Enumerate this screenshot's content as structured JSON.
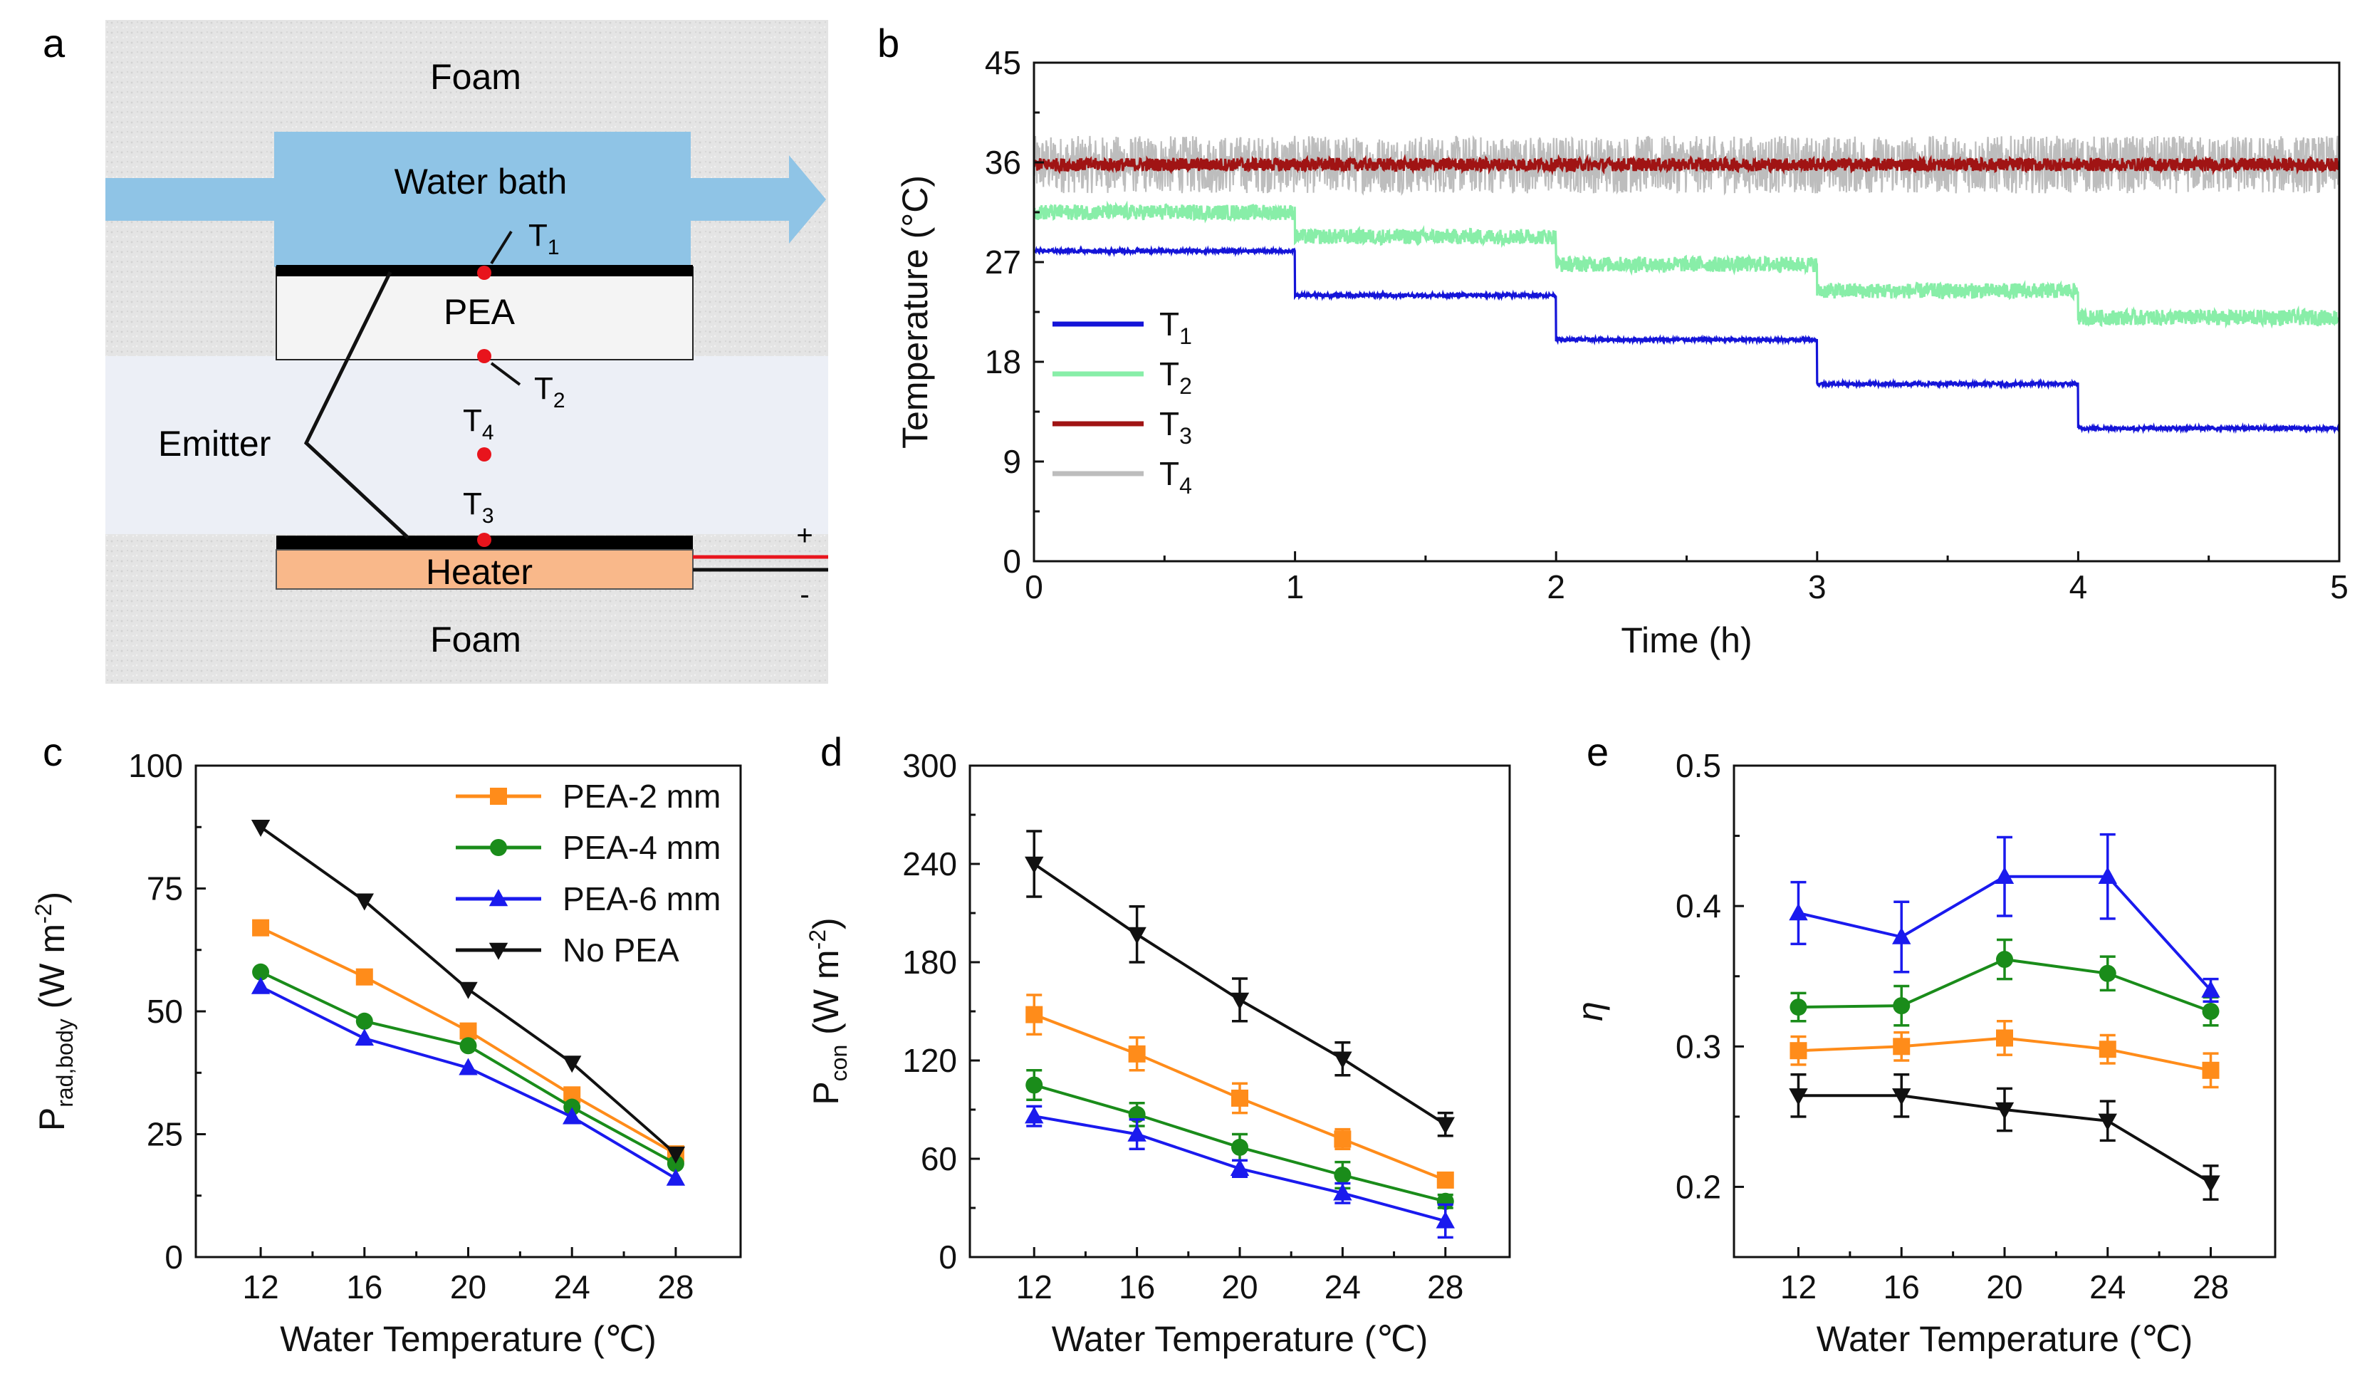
{
  "panels": {
    "a": {
      "letter": "a",
      "labels": {
        "foam_top": "Foam",
        "water_bath": "Water bath",
        "pea": "PEA",
        "emitter": "Emitter",
        "heater": "Heater",
        "foam_bottom": "Foam",
        "t1": "T",
        "t1_sub": "1",
        "t2": "T",
        "t2_sub": "2",
        "t3": "T",
        "t3_sub": "3",
        "t4": "T",
        "t4_sub": "4",
        "plus": "+",
        "minus": "-"
      },
      "colors": {
        "foam": "#e6e6e6",
        "water": "#8fc4e6",
        "pea": "#f1f1f1",
        "heater": "#f9b88a",
        "arrow": "#8fc4e6",
        "sensor": "#e8141c"
      }
    }
  },
  "chart_data": [
    {
      "panel": "b",
      "type": "line",
      "title": "",
      "xlabel": "Time (h)",
      "ylabel": "Temperature (°C)",
      "xlim": [
        0,
        5
      ],
      "ylim": [
        0,
        45
      ],
      "xticks": [
        0,
        1,
        2,
        3,
        4,
        5
      ],
      "yticks": [
        0,
        9,
        18,
        27,
        36,
        45
      ],
      "legend_position": "middle-left",
      "series": [
        {
          "name": "T",
          "sub": "1",
          "color": "#1414d8",
          "noise": 0.15,
          "steps": [
            [
              0,
              1,
              28.0
            ],
            [
              1,
              2,
              24.0
            ],
            [
              2,
              3,
              20.0
            ],
            [
              3,
              4,
              16.0
            ],
            [
              4,
              5,
              12.0
            ]
          ]
        },
        {
          "name": "T",
          "sub": "2",
          "color": "#88eea8",
          "noise": 0.7,
          "steps": [
            [
              0,
              1,
              31.5
            ],
            [
              1,
              2,
              29.3
            ],
            [
              2,
              3,
              26.8
            ],
            [
              3,
              4,
              24.4
            ],
            [
              4,
              5,
              22.0
            ]
          ]
        },
        {
          "name": "T",
          "sub": "3",
          "color": "#a01414",
          "noise": 0.6,
          "steps": [
            [
              0,
              5,
              35.8
            ]
          ]
        },
        {
          "name": "T",
          "sub": "4",
          "color": "#bdbdbd",
          "noise": 2.6,
          "steps": [
            [
              0,
              5,
              35.8
            ]
          ]
        }
      ]
    },
    {
      "panel": "c",
      "type": "line",
      "title": "",
      "xlabel": "Water Temperature (℃)",
      "ylabel_main": "P",
      "ylabel_sub": "rad,body",
      "ylabel_unit": " (W m",
      "ylabel_sup": "-2",
      "ylabel_end": ")",
      "xlim": [
        9.5,
        30.5
      ],
      "ylim": [
        0,
        100
      ],
      "categories": [
        12,
        16,
        20,
        24,
        28
      ],
      "yticks": [
        0,
        25,
        50,
        75,
        100
      ],
      "legend_position": "top-right",
      "series": [
        {
          "name": "PEA-2 mm",
          "color": "#ff8c1a",
          "marker": "square",
          "values": [
            67,
            57,
            46,
            33,
            21
          ]
        },
        {
          "name": "PEA-4 mm",
          "color": "#1a8c1a",
          "marker": "circle",
          "values": [
            58,
            48,
            43,
            30.5,
            19
          ]
        },
        {
          "name": "PEA-6 mm",
          "color": "#1a1aee",
          "marker": "triangle-up",
          "values": [
            55,
            44.5,
            38.5,
            28.5,
            16
          ]
        },
        {
          "name": "No PEA",
          "color": "#111111",
          "marker": "triangle-down",
          "values": [
            87.5,
            72.5,
            54.5,
            39.5,
            21
          ]
        }
      ]
    },
    {
      "panel": "d",
      "type": "line",
      "title": "",
      "xlabel": "Water Temperature (℃)",
      "ylabel_main": "P",
      "ylabel_sub": "con",
      "ylabel_unit": " (W m",
      "ylabel_sup": "-2",
      "ylabel_end": ")",
      "xlim": [
        9.5,
        30.5
      ],
      "ylim": [
        0,
        300
      ],
      "categories": [
        12,
        16,
        20,
        24,
        28
      ],
      "yticks": [
        0,
        60,
        120,
        180,
        240,
        300
      ],
      "series": [
        {
          "name": "PEA-2 mm",
          "color": "#ff8c1a",
          "marker": "square",
          "values": [
            148,
            124,
            97,
            72,
            47
          ],
          "errors": [
            12,
            10,
            9,
            6,
            4
          ]
        },
        {
          "name": "PEA-4 mm",
          "color": "#1a8c1a",
          "marker": "circle",
          "values": [
            105,
            87,
            67,
            50,
            34
          ],
          "errors": [
            9,
            7,
            8,
            8,
            4
          ]
        },
        {
          "name": "PEA-6 mm",
          "color": "#1a1aee",
          "marker": "triangle-up",
          "values": [
            86,
            75,
            54,
            39,
            22
          ],
          "errors": [
            6,
            9,
            5,
            6,
            10
          ]
        },
        {
          "name": "No PEA",
          "color": "#111111",
          "marker": "triangle-down",
          "values": [
            240,
            197,
            157,
            121,
            81
          ],
          "errors": [
            20,
            17,
            13,
            10,
            7
          ]
        }
      ]
    },
    {
      "panel": "e",
      "type": "line",
      "title": "",
      "xlabel": "Water Temperature (℃)",
      "ylabel": "η",
      "xlim": [
        9.5,
        30.5
      ],
      "ylim": [
        0.15,
        0.5
      ],
      "categories": [
        12,
        16,
        20,
        24,
        28
      ],
      "yticks": [
        0.2,
        0.3,
        0.4,
        0.5
      ],
      "series": [
        {
          "name": "PEA-2 mm",
          "color": "#ff8c1a",
          "marker": "square",
          "values": [
            0.297,
            0.3,
            0.306,
            0.298,
            0.283
          ],
          "errors": [
            0.01,
            0.01,
            0.012,
            0.01,
            0.012
          ]
        },
        {
          "name": "PEA-4 mm",
          "color": "#1a8c1a",
          "marker": "circle",
          "values": [
            0.328,
            0.329,
            0.362,
            0.352,
            0.325
          ],
          "errors": [
            0.01,
            0.014,
            0.014,
            0.012,
            0.01
          ]
        },
        {
          "name": "PEA-6 mm",
          "color": "#1a1aee",
          "marker": "triangle-up",
          "values": [
            0.395,
            0.378,
            0.421,
            0.421,
            0.34
          ],
          "errors": [
            0.022,
            0.025,
            0.028,
            0.03,
            0.008
          ]
        },
        {
          "name": "No PEA",
          "color": "#111111",
          "marker": "triangle-down",
          "values": [
            0.265,
            0.265,
            0.255,
            0.247,
            0.203
          ],
          "errors": [
            0.015,
            0.015,
            0.015,
            0.014,
            0.012
          ]
        }
      ]
    }
  ]
}
